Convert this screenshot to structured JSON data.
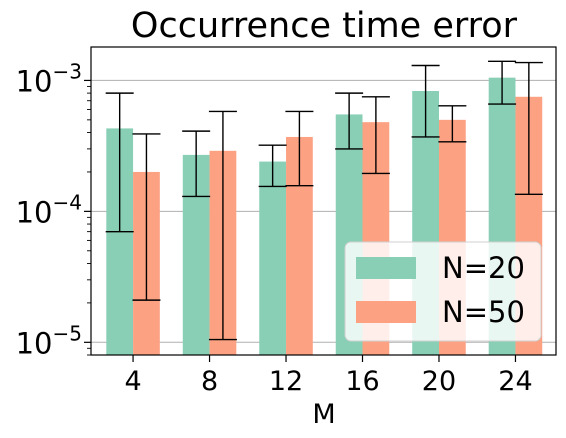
{
  "chart_data": {
    "type": "bar",
    "title": "Occurrence time error",
    "xlabel": "M",
    "ylabel": "",
    "yscale": "log",
    "ylim": [
      8e-06,
      0.0018
    ],
    "yticks": [
      {
        "value": 1e-05,
        "base": "10",
        "exp": "−5"
      },
      {
        "value": 0.0001,
        "base": "10",
        "exp": "−4"
      },
      {
        "value": 0.001,
        "base": "10",
        "exp": "−3"
      }
    ],
    "grid": "horizontal",
    "legend_position": "lower right",
    "categories": [
      "4",
      "8",
      "12",
      "16",
      "20",
      "24"
    ],
    "series": [
      {
        "name": "N=20",
        "color": "#88cfb5",
        "values": [
          0.00043,
          0.00027,
          0.00024,
          0.00055,
          0.00083,
          0.00105
        ],
        "err_low": [
          7e-05,
          0.00013,
          0.000155,
          0.0003,
          0.00037,
          0.00066
        ],
        "err_high": [
          0.0008,
          0.00041,
          0.00032,
          0.0008,
          0.0013,
          0.0014
        ]
      },
      {
        "name": "N=50",
        "color": "#fca283",
        "values": [
          0.0002,
          0.00029,
          0.00037,
          0.00048,
          0.0005,
          0.00075
        ],
        "err_low": [
          2.1e-05,
          1.05e-05,
          0.000157,
          0.000195,
          0.00034,
          0.000135
        ],
        "err_high": [
          0.00039,
          0.00058,
          0.00058,
          0.00075,
          0.00064,
          0.00137
        ]
      }
    ]
  }
}
